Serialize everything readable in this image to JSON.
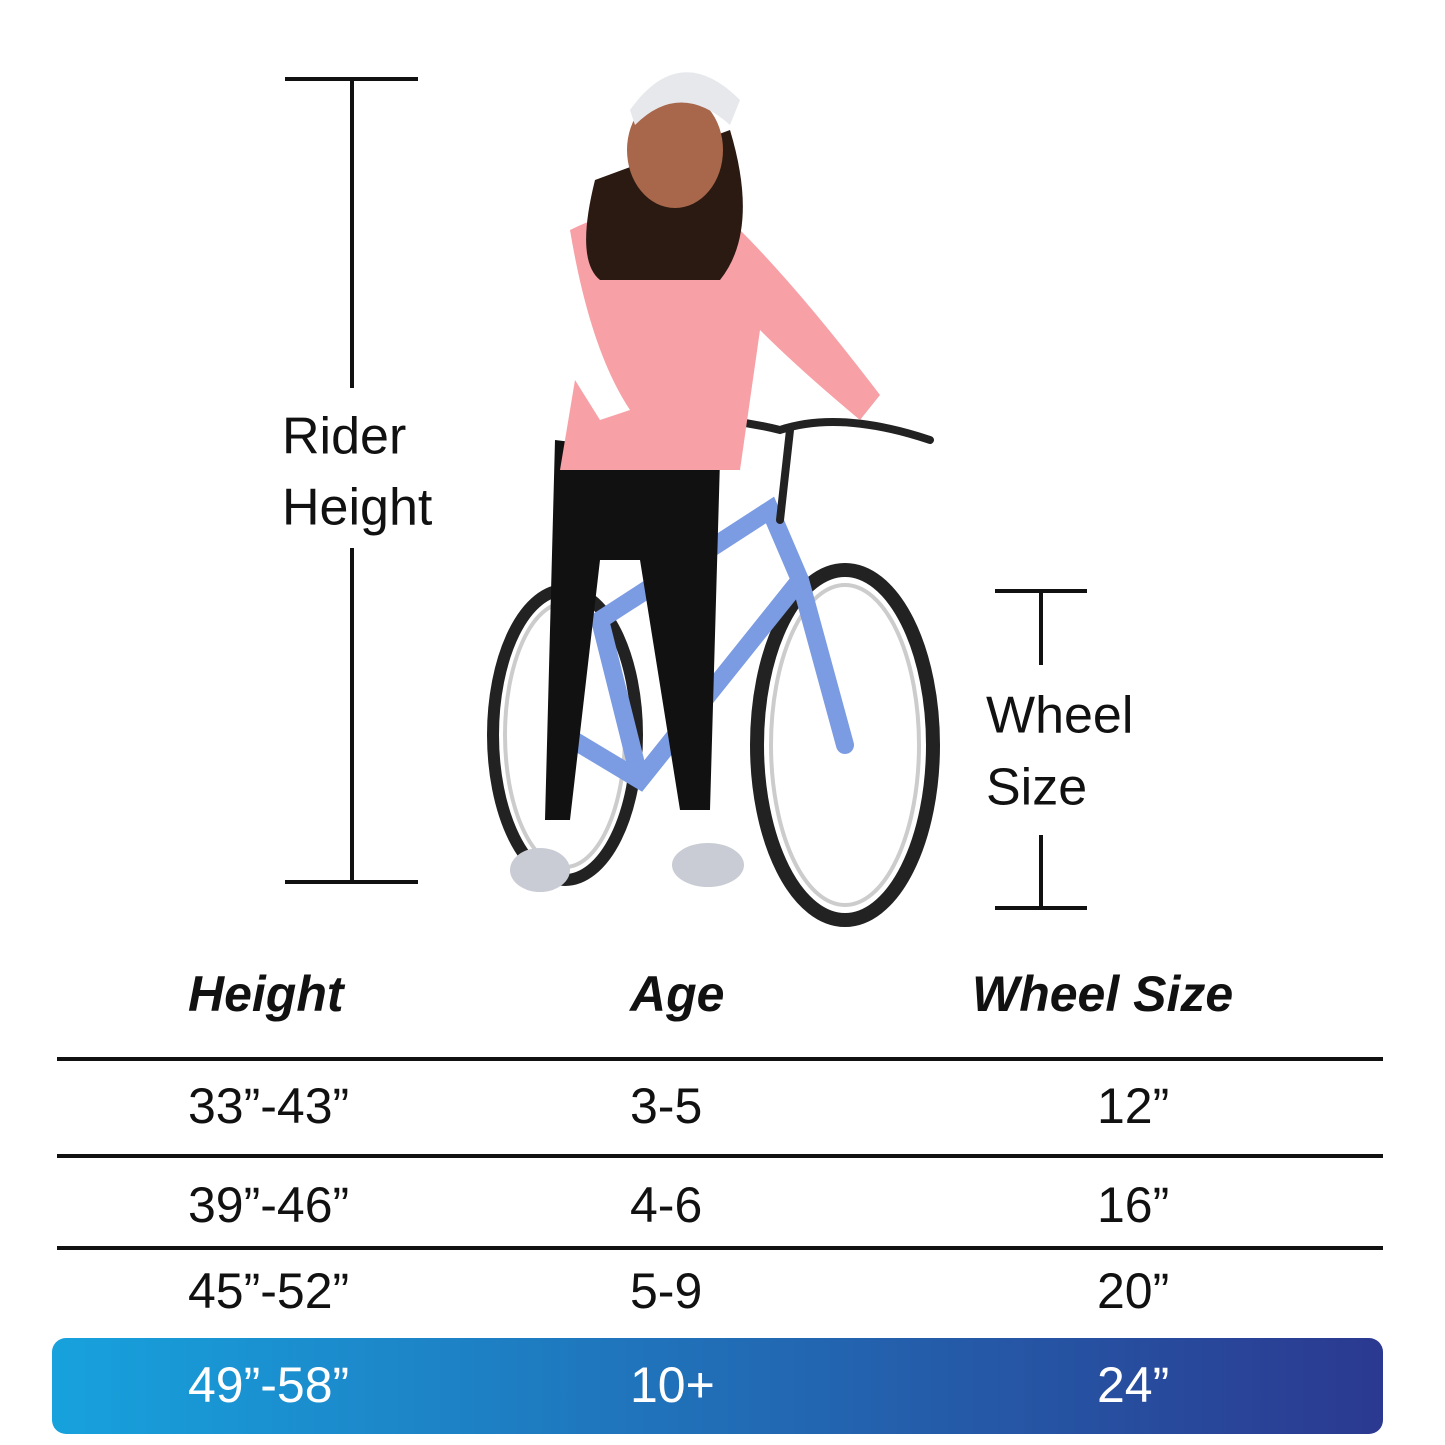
{
  "labels": {
    "rider_height": [
      "Rider",
      "Height"
    ],
    "wheel_size": [
      "Wheel",
      "Size"
    ]
  },
  "table": {
    "header": [
      "Height",
      "Age",
      "Wheel Size"
    ],
    "rows": [
      [
        "33”-43”",
        "3-5",
        "12”"
      ],
      [
        "39”-46”",
        "4-6",
        "16”"
      ],
      [
        "45”-52”",
        "5-9",
        "20”"
      ],
      [
        "49”-58”",
        "10+",
        "24”"
      ]
    ]
  }
}
